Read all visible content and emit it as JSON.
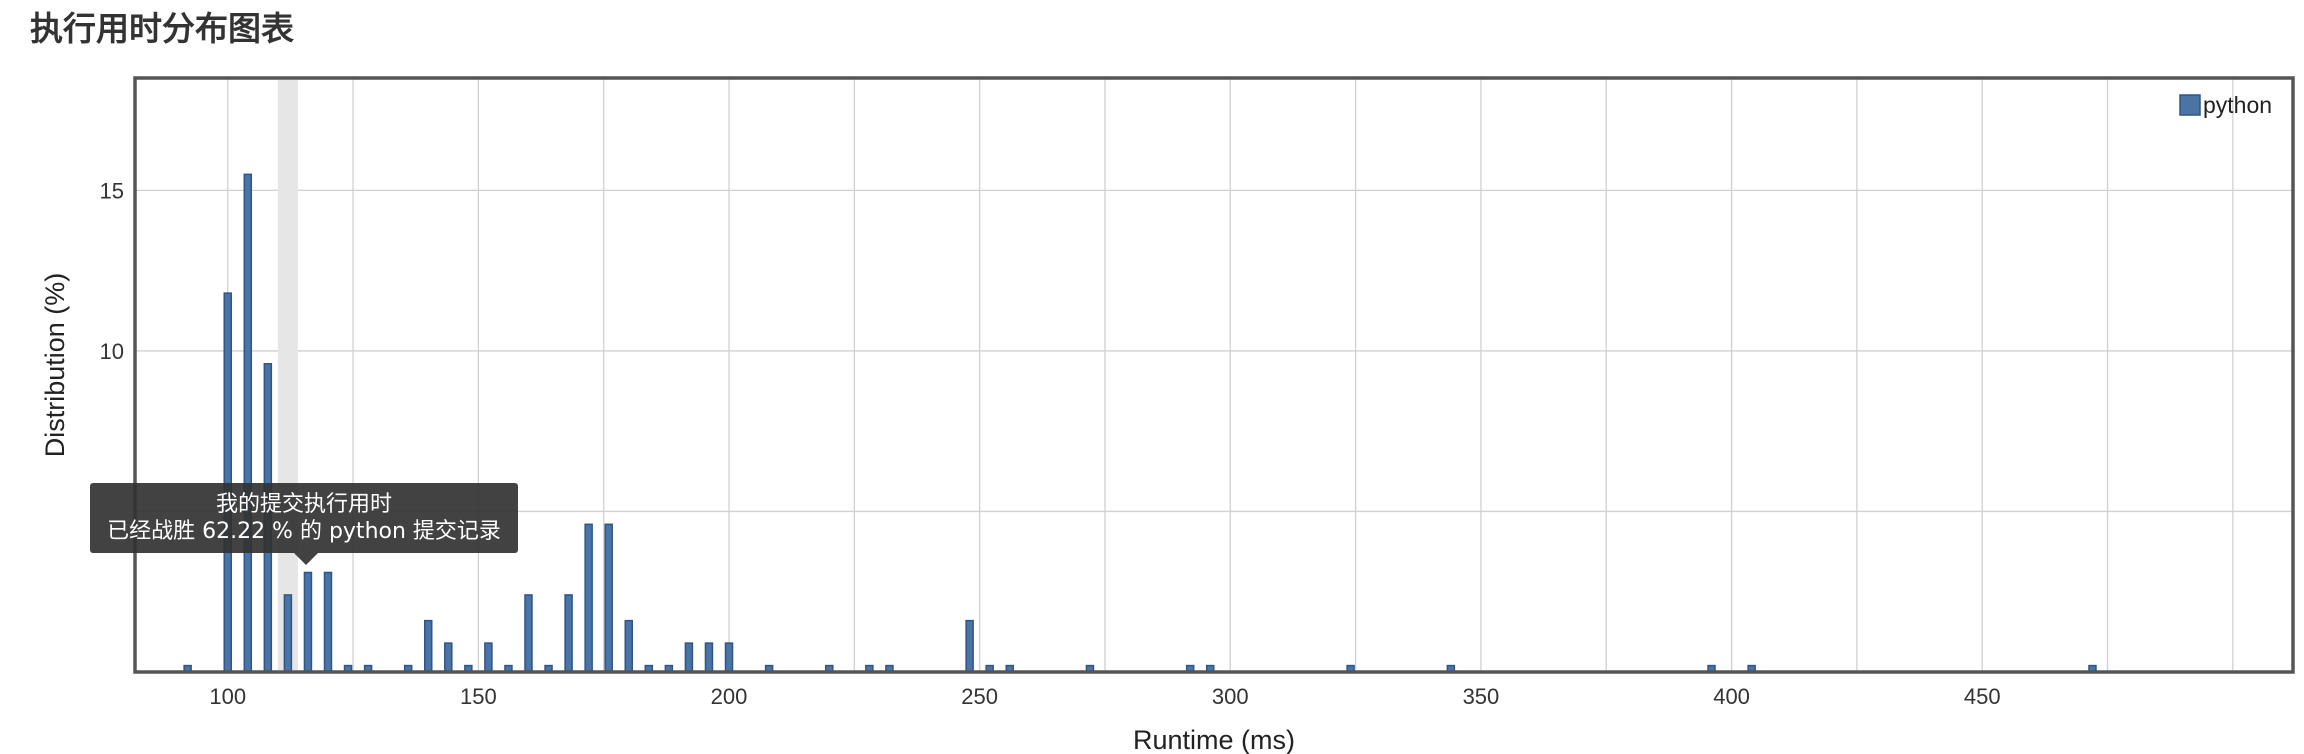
{
  "page": {
    "title": "执行用时分布图表"
  },
  "tooltip": {
    "line1": "我的提交执行用时",
    "line2": "已经战胜 62.22 % 的 python 提交记录"
  },
  "chart_data": {
    "type": "bar",
    "title": "执行用时分布图表",
    "xlabel": "Runtime (ms)",
    "ylabel": "Distribution (%)",
    "xlim": [
      81.5,
      512
    ],
    "ylim": [
      0,
      18.5
    ],
    "xticks": [
      100,
      150,
      200,
      250,
      300,
      350,
      400,
      450
    ],
    "yticks": [
      10,
      15
    ],
    "grid": true,
    "legend_position": "top-right",
    "bar_color": "#4a74a6",
    "highlight_range": [
      110,
      114
    ],
    "series": [
      {
        "name": "python",
        "x": [
          92,
          100,
          104,
          108,
          112,
          116,
          120,
          124,
          128,
          136,
          140,
          144,
          148,
          152,
          156,
          160,
          164,
          168,
          172,
          176,
          180,
          184,
          188,
          192,
          196,
          200,
          208,
          220,
          228,
          232,
          248,
          252,
          256,
          272,
          292,
          296,
          324,
          344,
          396,
          404,
          472
        ],
        "values": [
          0.2,
          11.8,
          15.5,
          9.6,
          2.4,
          3.1,
          3.1,
          0.2,
          0.2,
          0.2,
          1.6,
          0.9,
          0.2,
          0.9,
          0.2,
          2.4,
          0.2,
          2.4,
          4.6,
          4.6,
          1.6,
          0.2,
          0.2,
          0.9,
          0.9,
          0.9,
          0.2,
          0.2,
          0.2,
          0.2,
          1.6,
          0.2,
          0.2,
          0.2,
          0.2,
          0.2,
          0.2,
          0.2,
          0.2,
          0.2,
          0.2
        ]
      }
    ]
  }
}
